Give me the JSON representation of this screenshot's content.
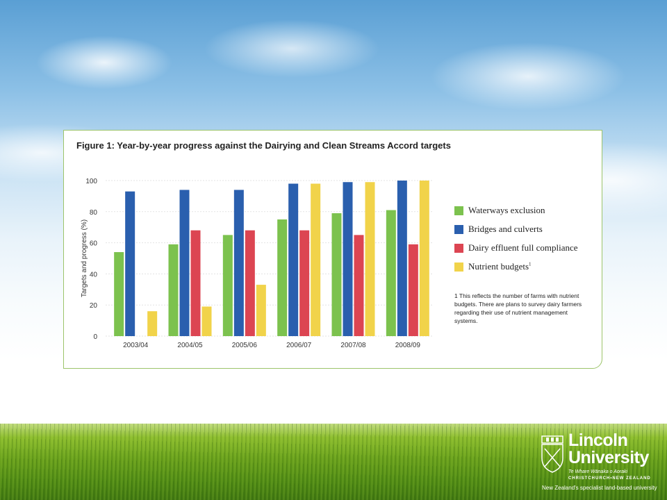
{
  "figure_title": "Figure 1:  Year-by-year progress against the Dairying and Clean Streams Accord targets",
  "chart_data": {
    "type": "bar",
    "title": "Figure 1:  Year-by-year progress against the Dairying and Clean Streams Accord targets",
    "xlabel": "",
    "ylabel": "Targets and progress (%)",
    "ylim": [
      0,
      100
    ],
    "yticks": [
      "0",
      "20",
      "40",
      "60",
      "80",
      "100"
    ],
    "categories": [
      "2003/04",
      "2004/05",
      "2005/06",
      "2006/07",
      "2007/08",
      "2008/09"
    ],
    "series": [
      {
        "name": "Waterways exclusion",
        "color": "#7cc24e",
        "values": [
          54,
          59,
          65,
          75,
          79,
          81
        ]
      },
      {
        "name": "Bridges and culverts",
        "color": "#2a5fae",
        "values": [
          93,
          94,
          94,
          98,
          99,
          100
        ]
      },
      {
        "name": "Dairy effluent full compliance",
        "color": "#dc4552",
        "values": [
          null,
          68,
          68,
          68,
          65,
          59
        ]
      },
      {
        "name": "Nutrient budgets",
        "color": "#f1d34a",
        "values": [
          16,
          19,
          33,
          98,
          99,
          100
        ]
      }
    ],
    "legend_position": "right",
    "grid": true
  },
  "legend_superscript": "1",
  "footnote": "1 This reflects the number of farms with nutrient budgets. There are plans to survey dairy farmers regarding their use of nutrient management systems.",
  "logo": {
    "name_line1": "Lincoln",
    "name_line2": "University",
    "maori": "Te Whare Wānaka o Aoraki",
    "city": "CHRISTCHURCH•NEW ZEALAND",
    "tagline": "New Zealand's specialist land-based university"
  }
}
